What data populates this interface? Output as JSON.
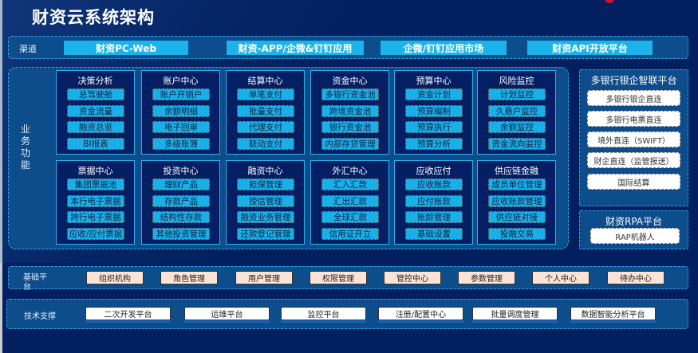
{
  "title": "财资云系统架构",
  "channel": {
    "label": "渠道",
    "items": [
      "财资PC-Web",
      "财资-APP/企微&钉钉应用",
      "企微/钉钉应用市场",
      "财资API开放平台"
    ]
  },
  "business": {
    "label": "业务功能",
    "modules": [
      {
        "title": "决策分析",
        "items": [
          "总驾驶舱",
          "资金流量",
          "融资总览",
          "BI报表"
        ]
      },
      {
        "title": "账户中心",
        "items": [
          "账户开销户",
          "余额明细",
          "电子回单",
          "多级账簿"
        ]
      },
      {
        "title": "结算中心",
        "items": [
          "单笔支付",
          "批量支付",
          "代理支付",
          "联动支付"
        ]
      },
      {
        "title": "资金中心",
        "items": [
          "多银行资金池",
          "跨境资金池",
          "银行资金池",
          "内部存贷管理"
        ]
      },
      {
        "title": "预算中心",
        "items": [
          "资金计划",
          "预算编制",
          "预算执行",
          "预算分析"
        ]
      },
      {
        "title": "风险监控",
        "items": [
          "计划监控",
          "久悬户监控",
          "余额监控",
          "资金流向监控"
        ]
      },
      {
        "title": "票据中心",
        "items": [
          "集团票据池",
          "本行电子票据",
          "跨行电子票据",
          "应收/应付票据"
        ]
      },
      {
        "title": "投资中心",
        "items": [
          "理财产品",
          "存款产品",
          "结构性存款",
          "其他投资管理"
        ]
      },
      {
        "title": "融资中心",
        "items": [
          "担保管理",
          "授信管理",
          "融资业务管理",
          "还款登记管理"
        ]
      },
      {
        "title": "外汇中心",
        "items": [
          "汇入汇款",
          "汇出汇款",
          "全球汇款",
          "信用证开立"
        ]
      },
      {
        "title": "应收应付",
        "items": [
          "应收账款",
          "应付账款",
          "账龄管理",
          "基础设置"
        ]
      },
      {
        "title": "供应链金融",
        "items": [
          "成员单位管理",
          "应收账款管理",
          "供应链对接",
          "投融交易"
        ]
      }
    ]
  },
  "bank_platform": {
    "title": "多银行银企智联平台",
    "items": [
      "多银行银企直连",
      "多银行电票直连",
      "境外直连（SWIFT）",
      "财企直连（监管报送）",
      "国际结算"
    ]
  },
  "rpa_platform": {
    "title": "财资RPA平台",
    "items": [
      "RAP机器人"
    ]
  },
  "base_platform": {
    "label": "基础平台",
    "items": [
      "组织机构",
      "角色管理",
      "用户管理",
      "权限管理",
      "管控中心",
      "参数管理",
      "个人中心",
      "待办中心"
    ]
  },
  "tech_support": {
    "label": "技术支撑",
    "items": [
      "二次开发平台",
      "运维平台",
      "监控平台",
      "注册/配置中心",
      "批量调度管理",
      "数据智能分析平台"
    ]
  },
  "colors": {
    "background": "#02205f",
    "band": "#0d4d8c",
    "accent": "#1ab4ea",
    "module_bg": "#041f63",
    "base_button": "#fbe3d6"
  }
}
